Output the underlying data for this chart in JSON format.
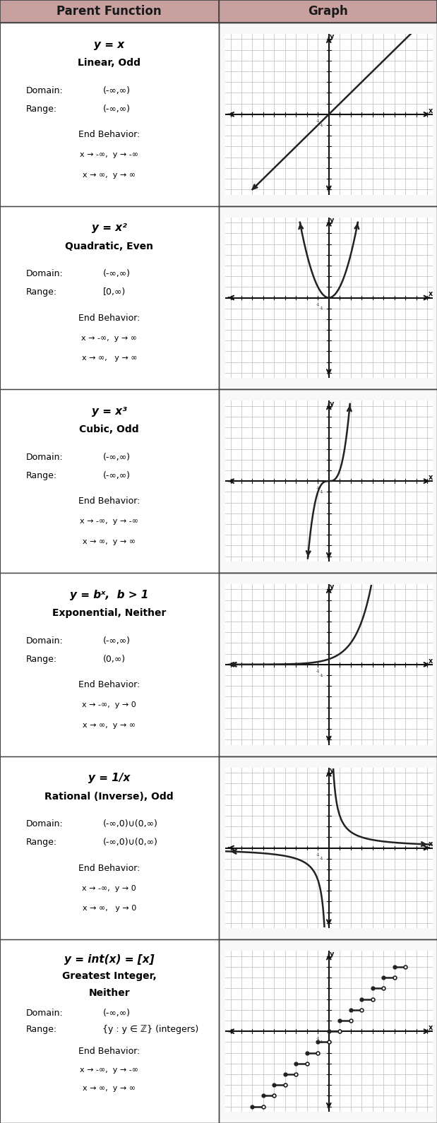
{
  "header_bg": "#c9a0a0",
  "header_text_color": "#1a1a1a",
  "cell_bg": "#ffffff",
  "border_color": "#444444",
  "graph_bg": "#ffffff",
  "grid_color": "#bbbbbb",
  "axis_color": "#111111",
  "curve_color": "#222222",
  "title_row": [
    "Parent Function",
    "Graph"
  ],
  "rows": [
    {
      "func_title": "y = x",
      "func_type": "Linear, Odd",
      "domain_val": "(-∞,∞)",
      "range_val": "(-∞,∞)",
      "end1": "x → -∞,  y → -∞",
      "end2": "x → ∞,  y → ∞",
      "graph_type": "linear"
    },
    {
      "func_title": "y = x²",
      "func_type": "Quadratic, Even",
      "domain_val": "(-∞,∞)",
      "range_val": "[0,∞)",
      "end1": "x → -∞,  y → ∞",
      "end2": "x → ∞,   y → ∞",
      "graph_type": "quadratic"
    },
    {
      "func_title": "y = x³",
      "func_type": "Cubic, Odd",
      "domain_val": "(-∞,∞)",
      "range_val": "(-∞,∞)",
      "end1": "x → -∞,  y → -∞",
      "end2": "x → ∞,  y → ∞",
      "graph_type": "cubic"
    },
    {
      "func_title": "y = bˣ,  b > 1",
      "func_type": "Exponential, Neither",
      "domain_val": "(-∞,∞)",
      "range_val": "(0,∞)",
      "end1": "x → -∞,  y → 0",
      "end2": "x → ∞,  y → ∞",
      "graph_type": "exponential"
    },
    {
      "func_title": "y = 1/x",
      "func_type": "Rational (Inverse), Odd",
      "domain_val": "(-∞,0)∪(0,∞)",
      "range_val": "(-∞,0)∪(0,∞)",
      "end1": "x → -∞,  y → 0",
      "end2": "x → ∞,   y → 0",
      "graph_type": "rational"
    },
    {
      "func_title": "y = int(x) = [x]",
      "func_type": "Greatest Integer,\nNeither",
      "domain_val": "(-∞,∞)",
      "range_val": "{y : y ∈ ℤ} (integers)",
      "end1": "x → -∞,  y → -∞",
      "end2": "x → ∞,  y → ∞",
      "graph_type": "greatest_integer"
    }
  ]
}
